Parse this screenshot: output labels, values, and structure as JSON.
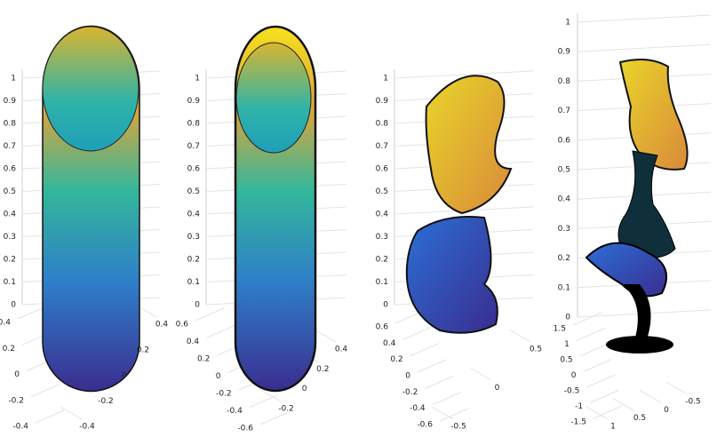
{
  "chart_data": [
    {
      "type": "surface",
      "zlim": [
        0,
        1
      ],
      "zticks": [
        0,
        0.1,
        0.2,
        0.3,
        0.4,
        0.5,
        0.6,
        0.7,
        0.8,
        0.9,
        1
      ],
      "ylim": [
        -0.4,
        0.4
      ],
      "yticks": [
        0.4,
        0.2,
        0,
        -0.2,
        -0.4
      ],
      "xlim": [
        -0.4,
        0.4
      ],
      "xticks": [
        0.4,
        0.2,
        0,
        -0.2,
        -0.4
      ],
      "grid": true
    },
    {
      "type": "surface",
      "zlim": [
        0,
        1
      ],
      "zticks": [
        0,
        0.1,
        0.2,
        0.3,
        0.4,
        0.5,
        0.6,
        0.7,
        0.8,
        0.9,
        1
      ],
      "ylim": [
        -0.6,
        0.6
      ],
      "yticks": [
        0.6,
        0.4,
        0.2,
        0,
        -0.2,
        -0.4,
        -0.6
      ],
      "xlim": [
        -0.2,
        0.4
      ],
      "xticks": [
        0.4,
        0.2,
        0,
        -0.2
      ],
      "grid": true
    },
    {
      "type": "surface",
      "zlim": [
        0,
        1
      ],
      "zticks": [
        0,
        0.1,
        0.2,
        0.3,
        0.4,
        0.5,
        0.6,
        0.7,
        0.8,
        0.9,
        1
      ],
      "ylim": [
        -0.6,
        0.6
      ],
      "yticks": [
        0.6,
        0.4,
        0.2,
        0,
        -0.2,
        -0.4,
        -0.6
      ],
      "xlim": [
        -0.5,
        0.5
      ],
      "xticks": [
        0.5,
        0,
        -0.5
      ],
      "grid": true
    },
    {
      "type": "surface",
      "zlim": [
        0,
        1
      ],
      "zticks": [
        0,
        0.1,
        0.2,
        0.3,
        0.4,
        0.5,
        0.6,
        0.7,
        0.8,
        0.9,
        1
      ],
      "ylim": [
        -1.5,
        1.5
      ],
      "yticks": [
        1.5,
        1,
        0.5,
        0,
        -0.5,
        -1,
        -1.5
      ],
      "xlim": [
        -0.5,
        1
      ],
      "xticks": [
        1,
        0.5,
        0,
        -0.5
      ],
      "grid": true
    }
  ]
}
